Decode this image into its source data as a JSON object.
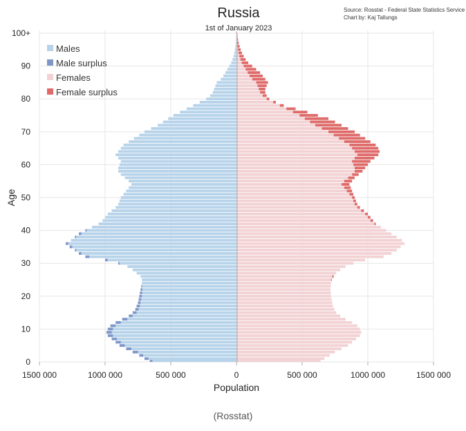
{
  "caption": "(Rosstat)",
  "chart_data": {
    "type": "bar",
    "orientation": "horizontal",
    "title": "Russia",
    "subtitle": "1st of January 2023",
    "source_line1": "Source: Rosstat - Federal State Statistics Service",
    "source_line2": "Chart by: Kaj Tallungs",
    "xlabel": "Population",
    "ylabel": "Age",
    "xlim": [
      -1500000,
      1500000
    ],
    "ylim": [
      0,
      100
    ],
    "x_tick_values": [
      -1500000,
      -1000000,
      -500000,
      0,
      500000,
      1000000,
      1500000
    ],
    "x_tick_labels": [
      "1500 000",
      "1000 000",
      "500 000",
      "0",
      "500 000",
      "1000 000",
      "1500 000"
    ],
    "y_tick_values": [
      0,
      10,
      20,
      30,
      40,
      50,
      60,
      70,
      80,
      90,
      100
    ],
    "y_tick_labels": [
      "0",
      "10",
      "20",
      "30",
      "40",
      "50",
      "60",
      "70",
      "80",
      "90",
      "100+"
    ],
    "grid": true,
    "legend_position": "top-left",
    "legend": [
      {
        "label": "Males",
        "color": "#b7d3ea"
      },
      {
        "label": "Male surplus",
        "color": "#7f96c8"
      },
      {
        "label": "Females",
        "color": "#f2d2d4"
      },
      {
        "label": "Female surplus",
        "color": "#de6b6a"
      }
    ],
    "colors": {
      "male": "#b7d3ea",
      "male_surplus": "#7f96c8",
      "female": "#f2d2d4",
      "female_surplus": "#de6b6a"
    },
    "ages": [
      0,
      1,
      2,
      3,
      4,
      5,
      6,
      7,
      8,
      9,
      10,
      11,
      12,
      13,
      14,
      15,
      16,
      17,
      18,
      19,
      20,
      21,
      22,
      23,
      24,
      25,
      26,
      27,
      28,
      29,
      30,
      31,
      32,
      33,
      34,
      35,
      36,
      37,
      38,
      39,
      40,
      41,
      42,
      43,
      44,
      45,
      46,
      47,
      48,
      49,
      50,
      51,
      52,
      53,
      54,
      55,
      56,
      57,
      58,
      59,
      60,
      61,
      62,
      63,
      64,
      65,
      66,
      67,
      68,
      69,
      70,
      71,
      72,
      73,
      74,
      75,
      76,
      77,
      78,
      79,
      80,
      81,
      82,
      83,
      84,
      85,
      86,
      87,
      88,
      89,
      90,
      91,
      92,
      93,
      94,
      95,
      96,
      97,
      98,
      99,
      100
    ],
    "series": [
      {
        "name": "Males",
        "values": [
          660000,
          700000,
          740000,
          790000,
          840000,
          890000,
          920000,
          950000,
          980000,
          990000,
          980000,
          960000,
          920000,
          870000,
          820000,
          790000,
          770000,
          760000,
          750000,
          745000,
          740000,
          735000,
          730000,
          725000,
          720000,
          720000,
          730000,
          760000,
          790000,
          830000,
          900000,
          1000000,
          1150000,
          1200000,
          1230000,
          1270000,
          1300000,
          1260000,
          1230000,
          1200000,
          1150000,
          1100000,
          1050000,
          1020000,
          1000000,
          980000,
          950000,
          920000,
          900000,
          890000,
          880000,
          860000,
          840000,
          820000,
          800000,
          820000,
          850000,
          880000,
          900000,
          900000,
          890000,
          880000,
          900000,
          920000,
          900000,
          880000,
          860000,
          820000,
          780000,
          740000,
          700000,
          650000,
          600000,
          560000,
          520000,
          480000,
          430000,
          380000,
          330000,
          280000,
          230000,
          200000,
          180000,
          170000,
          160000,
          150000,
          120000,
          100000,
          85000,
          70000,
          55000,
          40000,
          30000,
          22000,
          16000,
          12000,
          9000,
          6000,
          4000,
          2500,
          1500
        ]
      },
      {
        "name": "Females",
        "values": [
          640000,
          670000,
          710000,
          750000,
          800000,
          850000,
          880000,
          910000,
          940000,
          950000,
          940000,
          920000,
          880000,
          830000,
          790000,
          760000,
          745000,
          735000,
          730000,
          725000,
          720000,
          718000,
          716000,
          718000,
          720000,
          725000,
          740000,
          760000,
          790000,
          830000,
          890000,
          980000,
          1120000,
          1180000,
          1220000,
          1250000,
          1280000,
          1260000,
          1220000,
          1180000,
          1140000,
          1100000,
          1060000,
          1040000,
          1020000,
          1000000,
          970000,
          940000,
          920000,
          910000,
          900000,
          890000,
          880000,
          870000,
          860000,
          880000,
          900000,
          930000,
          960000,
          980000,
          1000000,
          1020000,
          1050000,
          1080000,
          1090000,
          1080000,
          1060000,
          1020000,
          980000,
          940000,
          900000,
          850000,
          800000,
          750000,
          700000,
          620000,
          540000,
          450000,
          360000,
          300000,
          250000,
          230000,
          220000,
          220000,
          230000,
          240000,
          220000,
          200000,
          180000,
          150000,
          120000,
          90000,
          70000,
          55000,
          42000,
          32000,
          24000,
          17000,
          12000,
          8000,
          5000
        ]
      }
    ]
  }
}
